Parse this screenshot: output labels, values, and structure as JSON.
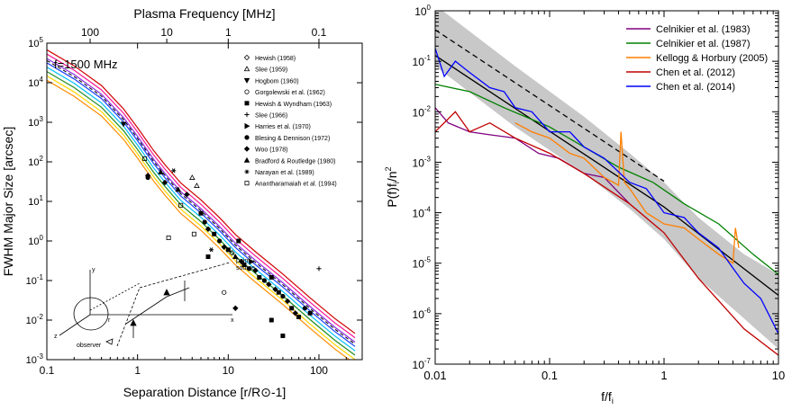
{
  "chart_data": [
    {
      "type": "scatter",
      "xlabel": "Separation Distance [r/R⊙-1]",
      "ylabel": "FWHM Major Size [arcsec]",
      "top_xlabel": "Plasma Frequency [MHz]",
      "annotation": "f=1500 MHz",
      "xscale": "log",
      "yscale": "log",
      "xlim": [
        0.1,
        300
      ],
      "ylim": [
        0.001,
        100000
      ],
      "x_ticks": [
        {
          "v": 0.1,
          "t": "0.1"
        },
        {
          "v": 1,
          "t": "1"
        },
        {
          "v": 10,
          "t": "10"
        },
        {
          "v": 100,
          "t": "100"
        }
      ],
      "y_ticks": [
        {
          "v": 0.001,
          "b": "10",
          "e": "-3"
        },
        {
          "v": 0.01,
          "b": "10",
          "e": "-2"
        },
        {
          "v": 0.1,
          "b": "10",
          "e": "-1"
        },
        {
          "v": 1,
          "t": "10",
          "e": "0"
        },
        {
          "v": 10,
          "b": "10",
          "e": "1"
        },
        {
          "v": 100,
          "b": "10",
          "e": "2"
        },
        {
          "v": 1000,
          "b": "10",
          "e": "3"
        },
        {
          "v": 10000,
          "b": "10",
          "e": "4"
        },
        {
          "v": 100000,
          "b": "10",
          "e": "5"
        }
      ],
      "top_ticks": [
        {
          "t": "100",
          "x": 0.3
        },
        {
          "t": "10",
          "x": 2.1
        },
        {
          "t": "1",
          "x": 10
        },
        {
          "t": "0.1",
          "x": 100
        }
      ],
      "model_curve": {
        "x": [
          0.1,
          0.2,
          0.4,
          0.7,
          1,
          1.5,
          2,
          3,
          5,
          8,
          12,
          20,
          40,
          80,
          150,
          250
        ],
        "y": [
          28000,
          11000,
          3500,
          900,
          300,
          80,
          35,
          12,
          4.5,
          1.6,
          0.6,
          0.22,
          0.06,
          0.015,
          0.0045,
          0.0019
        ]
      },
      "band_colors": [
        "#ff8c00",
        "#ffd700",
        "#228b22",
        "#00bfff",
        "#1e40ff",
        "#8a2be2",
        "#ff1493",
        "#d00000"
      ],
      "legend": [
        {
          "label": "Hewish (1958)",
          "marker": "diamond-open"
        },
        {
          "label": "Slee (1959)",
          "marker": "triangle-open"
        },
        {
          "label": "Hogbom (1960)",
          "marker": "triangle-down"
        },
        {
          "label": "Gorgolewski et al. (1962)",
          "marker": "circle-open"
        },
        {
          "label": "Hewish & Wyndham (1963)",
          "marker": "square"
        },
        {
          "label": "Slee (1966)",
          "marker": "plus"
        },
        {
          "label": "Harries et al. (1970)",
          "marker": "triangle-right"
        },
        {
          "label": "Blesing & Dennison (1972)",
          "marker": "circle"
        },
        {
          "label": "Woo (1978)",
          "marker": "diamond"
        },
        {
          "label": "Bradford & Routledge (1980)",
          "marker": "triangle"
        },
        {
          "label": "Narayan et al. (1989)",
          "marker": "asterisk"
        },
        {
          "label": "Anantharamaiah et al. (1994)",
          "marker": "square-open"
        }
      ],
      "points": [
        [
          0.7,
          900,
          "triangle-down"
        ],
        [
          1.3,
          40,
          "circle"
        ],
        [
          1.3,
          45,
          "diamond"
        ],
        [
          1.2,
          120,
          "square-open"
        ],
        [
          1.8,
          55,
          "triangle"
        ],
        [
          2.0,
          30,
          "diamond"
        ],
        [
          2.2,
          1.2,
          "square-open"
        ],
        [
          2.5,
          60,
          "asterisk"
        ],
        [
          2.8,
          20,
          "triangle"
        ],
        [
          3.0,
          8,
          "square-open"
        ],
        [
          3.5,
          15,
          "diamond"
        ],
        [
          4.0,
          40,
          "triangle-open"
        ],
        [
          4.5,
          25,
          "triangle-open"
        ],
        [
          5.0,
          5,
          "square"
        ],
        [
          5.5,
          3,
          "circle"
        ],
        [
          6,
          2,
          "diamond"
        ],
        [
          7,
          1.5,
          "square"
        ],
        [
          8,
          1.0,
          "circle"
        ],
        [
          9,
          0.7,
          "diamond"
        ],
        [
          10,
          0.6,
          "square"
        ],
        [
          11,
          0.5,
          "diamond-open"
        ],
        [
          12,
          0.4,
          "triangle"
        ],
        [
          13,
          1.0,
          "square"
        ],
        [
          14,
          0.3,
          "diamond"
        ],
        [
          15,
          0.25,
          "square"
        ],
        [
          17,
          0.2,
          "circle"
        ],
        [
          20,
          0.18,
          "diamond"
        ],
        [
          22,
          0.12,
          "square"
        ],
        [
          25,
          0.1,
          "circle"
        ],
        [
          28,
          0.08,
          "diamond"
        ],
        [
          30,
          0.12,
          "square"
        ],
        [
          33,
          0.06,
          "diamond"
        ],
        [
          36,
          0.05,
          "square"
        ],
        [
          40,
          0.04,
          "circle"
        ],
        [
          45,
          0.03,
          "diamond"
        ],
        [
          50,
          0.02,
          "square"
        ],
        [
          55,
          0.015,
          "diamond"
        ],
        [
          60,
          0.012,
          "square"
        ],
        [
          70,
          0.02,
          "circle"
        ],
        [
          80,
          0.015,
          "square"
        ],
        [
          100,
          0.2,
          "plus"
        ],
        [
          40,
          0.004,
          "square"
        ],
        [
          30,
          0.01,
          "square"
        ],
        [
          18,
          0.3,
          "triangle-right"
        ],
        [
          9,
          0.05,
          "circle-open"
        ],
        [
          12,
          0.02,
          "diamond"
        ],
        [
          6,
          0.4,
          "square"
        ],
        [
          6.5,
          0.6,
          "asterisk"
        ],
        [
          4.2,
          1.5,
          "square-open"
        ]
      ]
    },
    {
      "type": "line",
      "xlabel": "f/f",
      "xlabel_sub": "i",
      "ylabel": "P(f)f",
      "ylabel_sub": "i",
      "ylabel_tail": "/n",
      "ylabel_sup": "2",
      "xscale": "log",
      "yscale": "log",
      "xlim": [
        0.01,
        10
      ],
      "ylim": [
        1e-07,
        1
      ],
      "x_ticks": [
        {
          "v": 0.01,
          "t": "0.01"
        },
        {
          "v": 0.1,
          "t": "0.1"
        },
        {
          "v": 1,
          "t": "1"
        },
        {
          "v": 10,
          "t": "10"
        }
      ],
      "y_ticks": [
        {
          "v": 1e-07,
          "b": "10",
          "e": "-7"
        },
        {
          "v": 1e-06,
          "b": "10",
          "e": "-6"
        },
        {
          "v": 1e-05,
          "b": "10",
          "e": "-5"
        },
        {
          "v": 0.0001,
          "b": "10",
          "e": "-4"
        },
        {
          "v": 0.001,
          "b": "10",
          "e": "-3"
        },
        {
          "v": 0.01,
          "b": "10",
          "e": "-2"
        },
        {
          "v": 0.1,
          "b": "10",
          "e": "-1"
        },
        {
          "v": 1,
          "b": "10",
          "e": "0"
        }
      ],
      "band": {
        "x": [
          0.01,
          0.05,
          0.2,
          0.5,
          1,
          2,
          5,
          10
        ],
        "upper": [
          1.3,
          0.08,
          0.008,
          0.0015,
          0.0004,
          8e-05,
          1.5e-05,
          6e-06
        ],
        "lower": [
          0.08,
          0.005,
          0.0006,
          0.00012,
          3e-05,
          5e-06,
          8e-07,
          2e-07
        ]
      },
      "dashed_line": {
        "x": [
          0.01,
          1
        ],
        "y": [
          0.42,
          0.00042
        ]
      },
      "solid_line": {
        "x": [
          0.01,
          1,
          10
        ],
        "y": [
          0.13,
          0.00013,
          2.3e-06
        ]
      },
      "series": [
        {
          "name": "Celnikier et al. (1983)",
          "color": "#800080",
          "x": [
            0.01,
            0.013,
            0.02,
            0.03,
            0.05,
            0.08,
            0.12,
            0.2,
            0.3,
            0.5
          ],
          "y": [
            0.012,
            0.006,
            0.004,
            0.0035,
            0.003,
            0.0015,
            0.0012,
            0.0006,
            0.0005,
            0.00015
          ]
        },
        {
          "name": "Celnikier et al. (1987)",
          "color": "#008000",
          "x": [
            0.01,
            0.02,
            0.04,
            0.1,
            0.2,
            0.4,
            0.8,
            1.5,
            3,
            6,
            10
          ],
          "y": [
            0.035,
            0.025,
            0.012,
            0.005,
            0.002,
            0.0008,
            0.0004,
            0.00015,
            6e-05,
            1.5e-05,
            6e-06
          ]
        },
        {
          "name": "Kellogg & Horbury (2005)",
          "color": "#ff7f00",
          "x": [
            0.05,
            0.07,
            0.1,
            0.15,
            0.2,
            0.3,
            0.4,
            0.42,
            0.45,
            0.5,
            0.7,
            1,
            1.5,
            2,
            3,
            4,
            4.2,
            4.5
          ],
          "y": [
            0.006,
            0.004,
            0.003,
            0.0015,
            0.0012,
            0.0005,
            0.00035,
            0.004,
            0.0004,
            0.0003,
            0.0001,
            6e-05,
            5e-05,
            3e-05,
            1.5e-05,
            1e-05,
            5e-05,
            2e-05
          ]
        },
        {
          "name": "Chen et al. (2012)",
          "color": "#c00000",
          "x": [
            0.01,
            0.015,
            0.02,
            0.03,
            0.05,
            0.1,
            0.2,
            0.5,
            1,
            2,
            5,
            10
          ],
          "y": [
            0.004,
            0.01,
            0.004,
            0.006,
            0.003,
            0.0015,
            0.0006,
            0.00015,
            4e-05,
            5e-06,
            5e-07,
            1.5e-07
          ]
        },
        {
          "name": "Chen et al. (2014)",
          "color": "#0000ff",
          "x": [
            0.01,
            0.012,
            0.015,
            0.02,
            0.03,
            0.04,
            0.05,
            0.07,
            0.1,
            0.15,
            0.2,
            0.3,
            0.5,
            0.7,
            1,
            1.5,
            2,
            3,
            4,
            5,
            7,
            10
          ],
          "y": [
            0.18,
            0.05,
            0.1,
            0.06,
            0.03,
            0.025,
            0.012,
            0.01,
            0.004,
            0.004,
            0.002,
            0.0012,
            0.0004,
            0.0003,
            0.0001,
            8e-05,
            4e-05,
            2e-05,
            8e-06,
            4e-06,
            2e-06,
            4e-07
          ]
        }
      ]
    }
  ]
}
